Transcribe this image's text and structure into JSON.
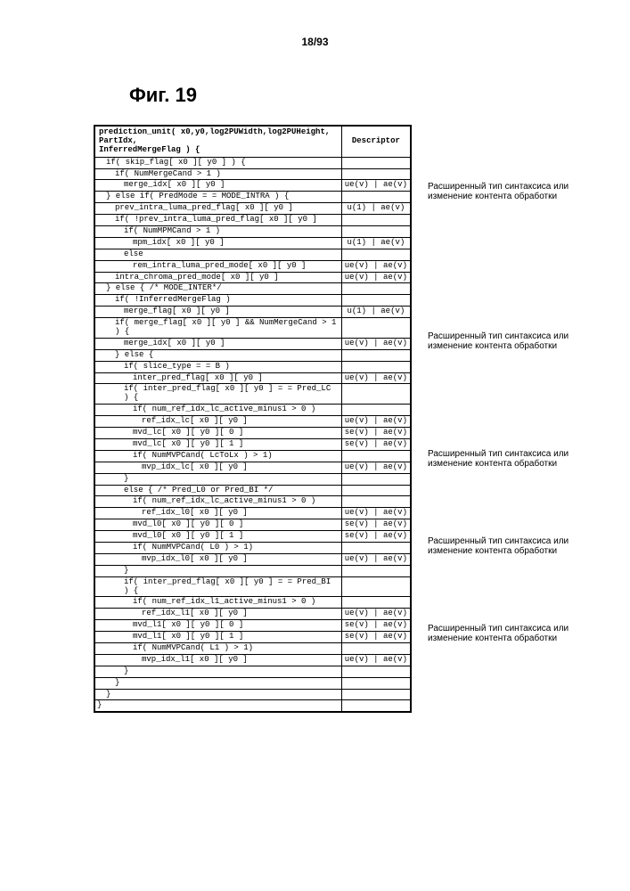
{
  "page_num": "18/93",
  "fig_title": "Фиг. 19",
  "annotation_text": "Расширенный тип синтаксиса или изменение контента обработки",
  "header": {
    "c1": "prediction_unit( x0,y0,log2PUWidth,log2PUHeight, PartIdx,\n                              InferredMergeFlag ) {",
    "c2": "Descriptor"
  },
  "rows": [
    {
      "c1": "if( skip_flag[ x0 ][ y0 ] ) {",
      "c2": "",
      "ind": 1
    },
    {
      "c1": "if( NumMergeCand > 1 )",
      "c2": "",
      "ind": 2
    },
    {
      "c1": "merge_idx[ x0 ][ y0 ]",
      "c2": "ue(v) | ae(v)",
      "ind": 3
    },
    {
      "c1": "} else if( PredMode = = MODE_INTRA ) {",
      "c2": "",
      "ind": 1
    },
    {
      "c1": "prev_intra_luma_pred_flag[ x0 ][ y0 ]",
      "c2": "u(1) | ae(v)",
      "ind": 2
    },
    {
      "c1": "if( !prev_intra_luma_pred_flag[ x0 ][ y0 ]",
      "c2": "",
      "ind": 2
    },
    {
      "c1": "if( NumMPMCand > 1 )",
      "c2": "",
      "ind": 3
    },
    {
      "c1": "mpm_idx[ x0 ][ y0 ]",
      "c2": "u(1) | ae(v)",
      "ind": 4
    },
    {
      "c1": "else",
      "c2": "",
      "ind": 3
    },
    {
      "c1": "rem_intra_luma_pred_mode[ x0 ][ y0 ]",
      "c2": "ue(v) | ae(v)",
      "ind": 4
    },
    {
      "c1": "intra_chroma_pred_mode[ x0 ][ y0 ]",
      "c2": "ue(v) | ae(v)",
      "ind": 2
    },
    {
      "c1": "} else { /* MODE_INTER*/",
      "c2": "",
      "ind": 1
    },
    {
      "c1": "if( !InferredMergeFlag )",
      "c2": "",
      "ind": 2
    },
    {
      "c1": "merge_flag[ x0 ][ y0 ]",
      "c2": "u(1) | ae(v)",
      "ind": 3
    },
    {
      "c1": "if( merge_flag[ x0 ][ y0 ] && NumMergeCand > 1 ) {",
      "c2": "",
      "ind": 2
    },
    {
      "c1": "merge_idx[ x0 ][ y0 ]",
      "c2": "ue(v) | ae(v)",
      "ind": 3
    },
    {
      "c1": "} else {",
      "c2": "",
      "ind": 2
    },
    {
      "c1": "if( slice_type = = B )",
      "c2": "",
      "ind": 3
    },
    {
      "c1": "inter_pred_flag[ x0 ][ y0 ]",
      "c2": "ue(v) | ae(v)",
      "ind": 4
    },
    {
      "c1": "if( inter_pred_flag[ x0 ][ y0 ] = = Pred_LC ) {",
      "c2": "",
      "ind": 3
    },
    {
      "c1": "if( num_ref_idx_lc_active_minus1 > 0 )",
      "c2": "",
      "ind": 4
    },
    {
      "c1": "ref_idx_lc[ x0 ][ y0 ]",
      "c2": "ue(v) | ae(v)",
      "ind": 5
    },
    {
      "c1": "mvd_lc[ x0 ][ y0 ][ 0 ]",
      "c2": "se(v) | ae(v)",
      "ind": 4
    },
    {
      "c1": "mvd_lc[ x0 ][ y0 ][ 1 ]",
      "c2": "se(v) | ae(v)",
      "ind": 4
    },
    {
      "c1": "if( NumMVPCand( LcToLx ) > 1)",
      "c2": "",
      "ind": 4
    },
    {
      "c1": "mvp_idx_lc[ x0 ][ y0 ]",
      "c2": "ue(v) | ae(v)",
      "ind": 5
    },
    {
      "c1": "}",
      "c2": "",
      "ind": 3
    },
    {
      "c1": "else { /* Pred_L0 or Pred_BI */",
      "c2": "",
      "ind": 3
    },
    {
      "c1": "if( num_ref_idx_lc_active_minus1 > 0 )",
      "c2": "",
      "ind": 4
    },
    {
      "c1": "ref_idx_l0[ x0 ][ y0 ]",
      "c2": "ue(v) | ae(v)",
      "ind": 5
    },
    {
      "c1": "mvd_l0[ x0 ][ y0 ][ 0 ]",
      "c2": "se(v) | ae(v)",
      "ind": 4
    },
    {
      "c1": "mvd_l0[ x0 ][ y0 ][ 1 ]",
      "c2": "se(v) | ae(v)",
      "ind": 4
    },
    {
      "c1": "if( NumMVPCand( L0 ) > 1)",
      "c2": "",
      "ind": 4
    },
    {
      "c1": "mvp_idx_l0[ x0 ][ y0 ]",
      "c2": "ue(v) | ae(v)",
      "ind": 5
    },
    {
      "c1": "}",
      "c2": "",
      "ind": 3
    },
    {
      "c1": "if( inter_pred_flag[ x0 ][ y0 ] = = Pred_BI ) {",
      "c2": "",
      "ind": 3
    },
    {
      "c1": "if( num_ref_idx_l1_active_minus1 > 0 )",
      "c2": "",
      "ind": 4
    },
    {
      "c1": "ref_idx_l1[ x0 ][ y0 ]",
      "c2": "ue(v) | ae(v)",
      "ind": 5
    },
    {
      "c1": "mvd_l1[ x0 ][ y0 ][ 0 ]",
      "c2": "se(v) | ae(v)",
      "ind": 4
    },
    {
      "c1": "mvd_l1[ x0 ][ y0 ][ 1 ]",
      "c2": "se(v) | ae(v)",
      "ind": 4
    },
    {
      "c1": "if( NumMVPCand( L1 ) > 1)",
      "c2": "",
      "ind": 4
    },
    {
      "c1": "mvp_idx_l1[ x0 ][ y0 ]",
      "c2": "ue(v) | ae(v)",
      "ind": 5
    },
    {
      "c1": "}",
      "c2": "",
      "ind": 3
    },
    {
      "c1": "}",
      "c2": "",
      "ind": 2
    },
    {
      "c1": "}",
      "c2": "",
      "ind": 1
    },
    {
      "c1": "}",
      "c2": "",
      "ind": 0
    }
  ]
}
